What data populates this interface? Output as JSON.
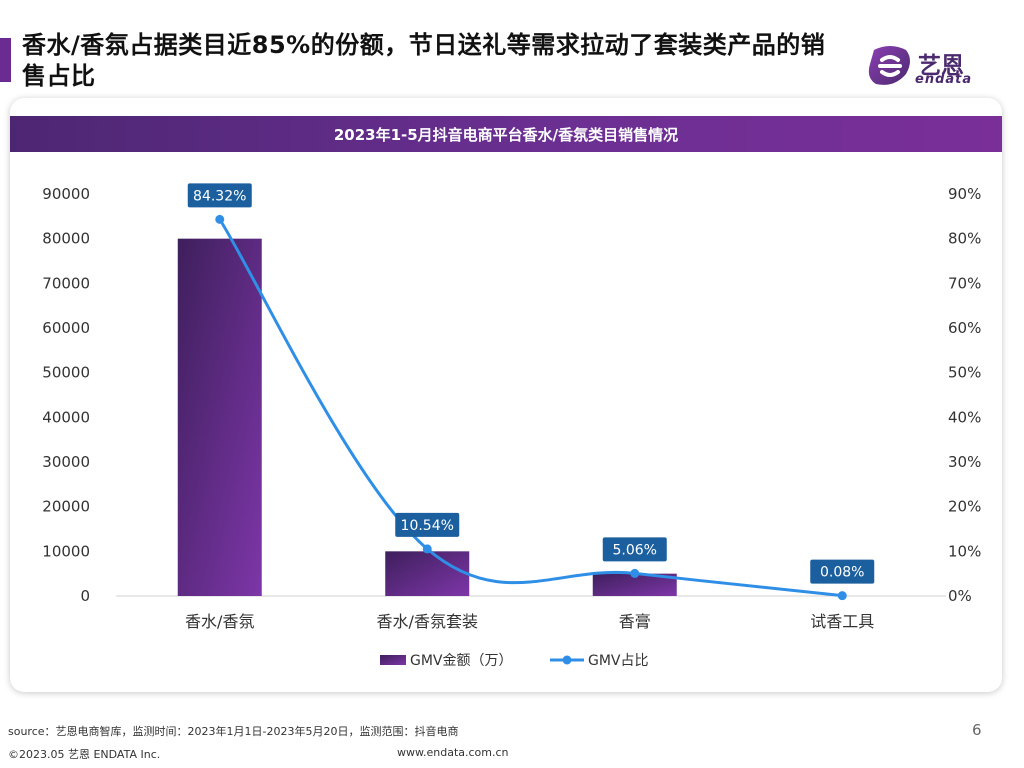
{
  "header": {
    "title": "香水/香氛占据类目近85%的份额，节日送礼等需求拉动了套装类产品的销售占比",
    "logo_cn": "艺恩",
    "logo_en": "endata"
  },
  "chart_data": {
    "type": "bar+line",
    "title": "2023年1-5月抖音电商平台香水/香氛类目销售情况",
    "categories": [
      "香水/香氛",
      "香水/香氛套装",
      "香膏",
      "试香工具"
    ],
    "series": [
      {
        "name": "GMV金额（万）",
        "type": "bar",
        "axis": "left",
        "values": [
          80000,
          10000,
          5000,
          0
        ],
        "color": "#6a2c91"
      },
      {
        "name": "GMV占比",
        "type": "line",
        "axis": "right",
        "values": [
          84.32,
          10.54,
          5.06,
          0.08
        ],
        "labels": [
          "84.32%",
          "10.54%",
          "5.06%",
          "0.08%"
        ],
        "color": "#2f8fe6"
      }
    ],
    "y_left": {
      "min": 0,
      "max": 90000,
      "ticks": [
        "0",
        "10000",
        "20000",
        "30000",
        "40000",
        "50000",
        "60000",
        "70000",
        "80000",
        "90000"
      ]
    },
    "y_right": {
      "min": 0,
      "max": 90,
      "ticks": [
        "0%",
        "10%",
        "20%",
        "30%",
        "40%",
        "50%",
        "60%",
        "70%",
        "80%",
        "90%"
      ]
    },
    "legend_position": "bottom-center",
    "grid": false
  },
  "footer": {
    "source": "source：艺恩电商智库，监测时间：2023年1月1日-2023年5月20日，监测范围：抖音电商",
    "copyright": "©2023.05 艺恩 ENDATA Inc.",
    "website": "www.endata.com.cn",
    "page": "6"
  }
}
